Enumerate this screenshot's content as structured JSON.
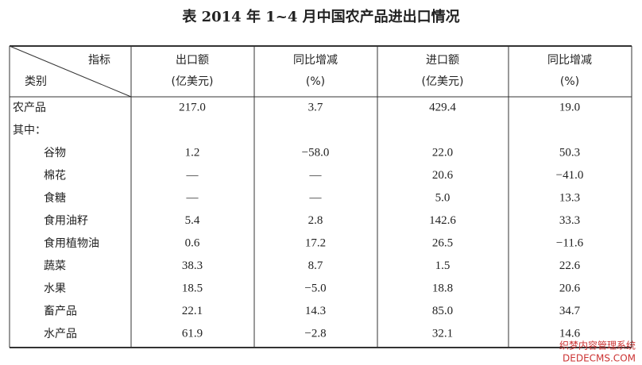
{
  "title": "表  2014 年 1~4 月中国农产品进出口情况",
  "table": {
    "corner": {
      "top": "指标",
      "bottom": "类别"
    },
    "columns": [
      {
        "name": "出口额",
        "unit": "(亿美元)"
      },
      {
        "name": "同比增减",
        "unit": "(%)"
      },
      {
        "name": "进口额",
        "unit": "(亿美元)"
      },
      {
        "name": "同比增减",
        "unit": "(%)"
      }
    ],
    "rows": [
      [
        "农产品",
        "217.0",
        "3.7",
        "429.4",
        "19.0"
      ],
      [
        "其中："
      ],
      [
        "谷物",
        "1.2",
        "−58.0",
        "22.0",
        "50.3"
      ],
      [
        "棉花",
        "—",
        "—",
        "20.6",
        "−41.0"
      ],
      [
        "食糖",
        "—",
        "—",
        "5.0",
        "13.3"
      ],
      [
        "食用油籽",
        "5.4",
        "2.8",
        "142.6",
        "33.3"
      ],
      [
        "食用植物油",
        "0.6",
        "17.2",
        "26.5",
        "−11.6"
      ],
      [
        "蔬菜",
        "38.3",
        "8.7",
        "1.5",
        "22.6"
      ],
      [
        "水果",
        "18.5",
        "−5.0",
        "18.8",
        "20.6"
      ],
      [
        "畜产品",
        "22.1",
        "14.3",
        "85.0",
        "34.7"
      ],
      [
        "水产品",
        "61.9",
        "−2.8",
        "32.1",
        "14.6"
      ]
    ]
  },
  "watermark": {
    "line1": "织梦内容管理系统",
    "line2": "DEDECMS.COM"
  }
}
